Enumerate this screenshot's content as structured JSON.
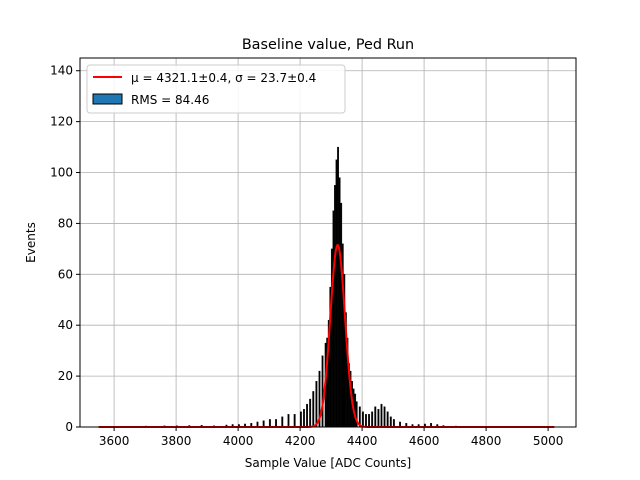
{
  "chart_data": {
    "type": "histogram",
    "title": "Baseline value, Ped Run",
    "xlabel": "Sample Value [ADC Counts]",
    "ylabel": "Events",
    "xlim": [
      3490,
      5090
    ],
    "ylim": [
      0,
      145
    ],
    "xticks": [
      3600,
      3800,
      4000,
      4200,
      4400,
      4600,
      4800,
      5000
    ],
    "xtick_labels": [
      "3600",
      "3800",
      "4000",
      "4200",
      "4400",
      "4600",
      "4800",
      "5000"
    ],
    "yticks": [
      0,
      20,
      40,
      60,
      80,
      100,
      120,
      140
    ],
    "ytick_labels": [
      "0",
      "20",
      "40",
      "60",
      "80",
      "100",
      "120",
      "140"
    ],
    "grid": true,
    "legend_position": "top-left",
    "legend": [
      {
        "label_mu": "μ = 4321.1±0.4, ",
        "label_sigma": "σ = 23.7±0.4",
        "kind": "line",
        "color": "#ff0000"
      },
      {
        "label": "RMS = 84.46",
        "kind": "patch",
        "color": "#1f77b4"
      }
    ],
    "histogram": {
      "bin_width": 5,
      "bar_color": "#000000",
      "bins": [
        [
          3560,
          0.3
        ],
        [
          3640,
          0.3
        ],
        [
          3700,
          0.4
        ],
        [
          3760,
          0.5
        ],
        [
          3800,
          0.5
        ],
        [
          3840,
          0.6
        ],
        [
          3880,
          0.7
        ],
        [
          3920,
          0.5
        ],
        [
          3960,
          0.8
        ],
        [
          3980,
          1
        ],
        [
          4000,
          1
        ],
        [
          4020,
          1.2
        ],
        [
          4040,
          1.5
        ],
        [
          4060,
          2
        ],
        [
          4080,
          2.5
        ],
        [
          4100,
          3
        ],
        [
          4120,
          3
        ],
        [
          4140,
          4
        ],
        [
          4160,
          5
        ],
        [
          4180,
          5
        ],
        [
          4200,
          6
        ],
        [
          4210,
          7
        ],
        [
          4220,
          9
        ],
        [
          4230,
          11
        ],
        [
          4240,
          14
        ],
        [
          4250,
          18
        ],
        [
          4260,
          22
        ],
        [
          4270,
          28
        ],
        [
          4280,
          33
        ],
        [
          4285,
          35
        ],
        [
          4290,
          42
        ],
        [
          4295,
          55
        ],
        [
          4300,
          70
        ],
        [
          4305,
          85
        ],
        [
          4310,
          95
        ],
        [
          4315,
          105
        ],
        [
          4320,
          110
        ],
        [
          4325,
          98
        ],
        [
          4330,
          88
        ],
        [
          4335,
          72
        ],
        [
          4340,
          60
        ],
        [
          4345,
          45
        ],
        [
          4350,
          35
        ],
        [
          4355,
          25
        ],
        [
          4360,
          22
        ],
        [
          4365,
          18
        ],
        [
          4370,
          15
        ],
        [
          4375,
          13
        ],
        [
          4380,
          10
        ],
        [
          4390,
          8
        ],
        [
          4400,
          6
        ],
        [
          4410,
          5
        ],
        [
          4420,
          5
        ],
        [
          4430,
          6
        ],
        [
          4440,
          8
        ],
        [
          4450,
          7
        ],
        [
          4460,
          9
        ],
        [
          4470,
          8
        ],
        [
          4480,
          6
        ],
        [
          4490,
          4
        ],
        [
          4500,
          3
        ],
        [
          4520,
          2
        ],
        [
          4540,
          1.5
        ],
        [
          4560,
          1
        ],
        [
          4580,
          1
        ],
        [
          4600,
          1.2
        ],
        [
          4620,
          1.5
        ],
        [
          4640,
          1
        ],
        [
          4660,
          0.6
        ],
        [
          4700,
          0.4
        ],
        [
          4760,
          0.3
        ],
        [
          4800,
          0.3
        ],
        [
          4860,
          0.3
        ],
        [
          4920,
          0.2
        ]
      ]
    },
    "fit": {
      "kind": "gaussian",
      "mu": 4321.1,
      "sigma": 23.7,
      "amplitude": 71.5,
      "x_range": [
        3550,
        5020
      ],
      "color": "#ff0000"
    }
  }
}
